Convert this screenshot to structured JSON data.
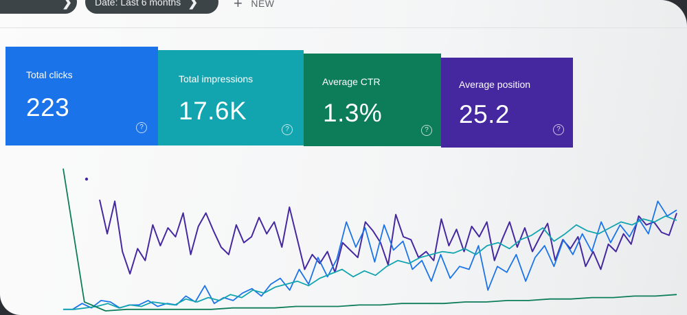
{
  "toolbar": {
    "pill_left_chevron": "❯",
    "date_filter": "Date: Last 6 months",
    "new_label": "NEW"
  },
  "metrics": [
    {
      "label": "Total clicks",
      "value": "223",
      "color": "#1a73e8"
    },
    {
      "label": "Total impressions",
      "value": "17.6K",
      "color": "#12a4af"
    },
    {
      "label": "Average CTR",
      "value": "1.3%",
      "color": "#0c7c59"
    },
    {
      "label": "Average position",
      "value": "25.2",
      "color": "#4527a0"
    }
  ],
  "help_icon": "?",
  "chart_data": {
    "type": "line",
    "grid": false,
    "legend": "none",
    "ylim": [
      0,
      100
    ],
    "series": [
      {
        "color": "#4527a0",
        "values": [
          75,
          52,
          74,
          40,
          25,
          42,
          34,
          58,
          44,
          56,
          50,
          66,
          38,
          57,
          66,
          54,
          43,
          38,
          58,
          46,
          50,
          63,
          52,
          60,
          43,
          70,
          49,
          28,
          38,
          32,
          40,
          26,
          46,
          41,
          36,
          60,
          54,
          46,
          31,
          65,
          50,
          48,
          36,
          40,
          34,
          62,
          44,
          55,
          40,
          57,
          50,
          60,
          34,
          48,
          60,
          43,
          56,
          40,
          50,
          59,
          34,
          48,
          42,
          50,
          30,
          40,
          28,
          45,
          40,
          52,
          45,
          64,
          58,
          60,
          53,
          51,
          66
        ]
      },
      {
        "color": "#1a73e8",
        "values": [
          1,
          1,
          5,
          2,
          7,
          6,
          2,
          4,
          4,
          7,
          3,
          5,
          4,
          10,
          6,
          17,
          5,
          9,
          7,
          12,
          15,
          10,
          18,
          22,
          14,
          28,
          18,
          36,
          23,
          35,
          60,
          43,
          56,
          33,
          58,
          41,
          47,
          28,
          34,
          20,
          38,
          22,
          30,
          28,
          44,
          14,
          30,
          26,
          38,
          20,
          36,
          44,
          30,
          48,
          38,
          52,
          40,
          60,
          46,
          58,
          50,
          62,
          52,
          74,
          64,
          68
        ]
      },
      {
        "color": "#12a4af",
        "values": [
          1,
          1,
          2,
          3,
          5,
          2,
          4,
          3,
          6,
          5,
          4,
          8,
          6,
          9,
          7,
          11,
          9,
          14,
          12,
          16,
          18,
          20,
          17,
          22,
          25,
          28,
          23,
          27,
          24,
          30,
          34,
          32,
          36,
          38,
          40,
          39,
          42,
          38,
          44,
          46,
          42,
          48,
          51,
          56,
          47,
          52,
          58,
          54,
          52,
          56,
          60,
          58,
          62,
          60,
          64,
          61
        ]
      },
      {
        "color": "#0c7c59",
        "values": [
          96,
          6,
          0,
          1,
          1,
          1,
          1,
          1,
          2,
          2,
          2,
          3,
          3,
          3,
          4,
          4,
          5,
          5,
          5,
          6,
          6,
          7,
          7,
          8,
          8,
          9,
          9,
          10,
          10,
          11
        ]
      }
    ]
  }
}
